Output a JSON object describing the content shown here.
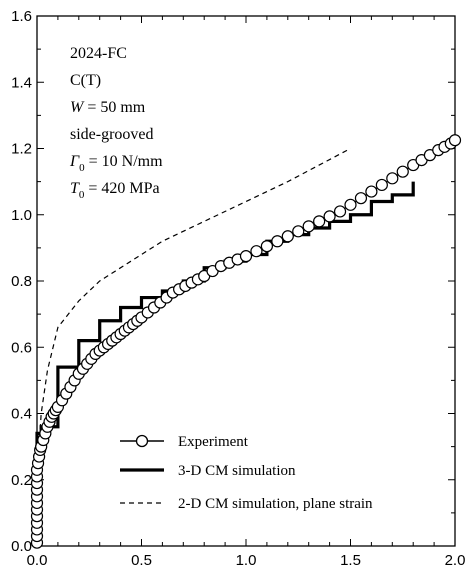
{
  "chart_data": {
    "type": "line",
    "title": "",
    "xlabel": "",
    "ylabel": "",
    "xlim": [
      0,
      2.0
    ],
    "ylim": [
      0,
      1.6
    ],
    "xticks": [
      "0.0",
      "0.5",
      "1.0",
      "1.5",
      "2.0"
    ],
    "yticks": [
      "0.0",
      "0.2",
      "0.4",
      "0.6",
      "0.8",
      "1.0",
      "1.2",
      "1.4",
      "1.6"
    ],
    "xtick_values": [
      0,
      0.5,
      1.0,
      1.5,
      2.0
    ],
    "ytick_values": [
      0,
      0.2,
      0.4,
      0.6,
      0.8,
      1.0,
      1.2,
      1.4,
      1.6
    ],
    "grid": false,
    "legend_position": "bottom-right",
    "annotations": {
      "line1": "2024-FC",
      "line2": "C(T)",
      "line3_italic": "W",
      "line3_rest": " = 50 mm",
      "line4": "side-grooved",
      "line5_italic": "Γ",
      "line5_sub": "0",
      "line5_rest": " = 10 N/mm",
      "line6_italic": "T",
      "line6_sub": "0",
      "line6_rest": " = 420 MPa"
    },
    "series": [
      {
        "name": "Experiment",
        "style": "circle-markers",
        "color": "#000000",
        "x": [
          0.0,
          0.0,
          0.0,
          0.0,
          0.0,
          0.0,
          0.0,
          0.0,
          0.0,
          0.0,
          0.0,
          0.0,
          0.005,
          0.01,
          0.015,
          0.02,
          0.03,
          0.04,
          0.05,
          0.06,
          0.07,
          0.08,
          0.09,
          0.1,
          0.12,
          0.14,
          0.16,
          0.18,
          0.2,
          0.22,
          0.24,
          0.26,
          0.28,
          0.3,
          0.32,
          0.34,
          0.36,
          0.38,
          0.4,
          0.42,
          0.44,
          0.46,
          0.48,
          0.5,
          0.53,
          0.56,
          0.59,
          0.62,
          0.65,
          0.68,
          0.71,
          0.74,
          0.77,
          0.8,
          0.84,
          0.88,
          0.92,
          0.96,
          1.0,
          1.05,
          1.1,
          1.15,
          1.2,
          1.25,
          1.3,
          1.35,
          1.4,
          1.45,
          1.5,
          1.55,
          1.6,
          1.65,
          1.7,
          1.75,
          1.8,
          1.84,
          1.88,
          1.92,
          1.95,
          1.98,
          2.0
        ],
        "y": [
          0.01,
          0.03,
          0.05,
          0.07,
          0.09,
          0.11,
          0.13,
          0.15,
          0.17,
          0.19,
          0.21,
          0.23,
          0.25,
          0.27,
          0.29,
          0.3,
          0.32,
          0.34,
          0.36,
          0.375,
          0.39,
          0.4,
          0.41,
          0.42,
          0.44,
          0.46,
          0.48,
          0.5,
          0.52,
          0.535,
          0.55,
          0.565,
          0.58,
          0.59,
          0.6,
          0.61,
          0.62,
          0.63,
          0.64,
          0.65,
          0.66,
          0.67,
          0.68,
          0.69,
          0.705,
          0.72,
          0.735,
          0.75,
          0.765,
          0.775,
          0.785,
          0.795,
          0.805,
          0.815,
          0.83,
          0.845,
          0.855,
          0.865,
          0.875,
          0.89,
          0.905,
          0.92,
          0.935,
          0.95,
          0.965,
          0.98,
          0.995,
          1.01,
          1.03,
          1.05,
          1.07,
          1.09,
          1.11,
          1.13,
          1.15,
          1.165,
          1.18,
          1.195,
          1.205,
          1.215,
          1.225
        ]
      },
      {
        "name": "3-D CM simulation",
        "style": "thick-step",
        "color": "#000000",
        "x": [
          0.0,
          0.0,
          0.02,
          0.02,
          0.1,
          0.1,
          0.2,
          0.2,
          0.3,
          0.3,
          0.4,
          0.4,
          0.5,
          0.5,
          0.6,
          0.6,
          0.7,
          0.7,
          0.8,
          0.8,
          0.9,
          0.9,
          1.0,
          1.0,
          1.1,
          1.1,
          1.2,
          1.2,
          1.3,
          1.3,
          1.4,
          1.4,
          1.5,
          1.5,
          1.6,
          1.6,
          1.7,
          1.7,
          1.8,
          1.8
        ],
        "y": [
          0.0,
          0.34,
          0.34,
          0.36,
          0.36,
          0.54,
          0.54,
          0.62,
          0.62,
          0.68,
          0.68,
          0.72,
          0.72,
          0.75,
          0.75,
          0.77,
          0.77,
          0.8,
          0.8,
          0.84,
          0.84,
          0.86,
          0.86,
          0.88,
          0.88,
          0.92,
          0.92,
          0.94,
          0.94,
          0.96,
          0.96,
          0.98,
          0.98,
          1.0,
          1.0,
          1.04,
          1.04,
          1.06,
          1.06,
          1.1
        ]
      },
      {
        "name": "2-D CM simulation, plane strain",
        "style": "dashed",
        "color": "#000000",
        "x": [
          0.0,
          0.01,
          0.02,
          0.05,
          0.1,
          0.2,
          0.3,
          0.45,
          0.6,
          0.8,
          1.0,
          1.2,
          1.35,
          1.5
        ],
        "y": [
          0.0,
          0.3,
          0.4,
          0.53,
          0.66,
          0.74,
          0.8,
          0.86,
          0.92,
          0.98,
          1.04,
          1.1,
          1.15,
          1.2
        ]
      }
    ]
  }
}
